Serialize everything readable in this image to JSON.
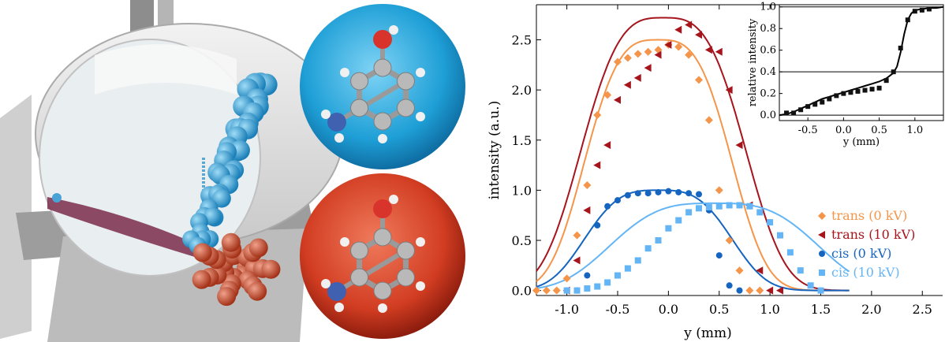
{
  "colors": {
    "trans_0kV": "#f5954a",
    "trans_10kV": "#a6141c",
    "cis_0kV": "#1565c0",
    "cis_10kV": "#64b5f6",
    "molecule_blue": "#2e93c9",
    "molecule_red": "#c8412c"
  },
  "illustration": {
    "description_icons": [
      "molecular-beam-deflector",
      "aminophenol-molecule-icon"
    ]
  },
  "chart_data": [
    {
      "type": "scatter",
      "xlabel": "y (mm)",
      "ylabel": "intensity (a.u.)",
      "xlim": [
        -1.3,
        2.7
      ],
      "ylim": [
        -0.05,
        2.85
      ],
      "xticks": [
        "-1.0",
        "-0.5",
        "0.0",
        "0.5",
        "1.0",
        "1.5",
        "2.0",
        "2.5"
      ],
      "xtick_values": [
        -1.0,
        -0.5,
        0.0,
        0.5,
        1.0,
        1.5,
        2.0,
        2.5
      ],
      "yticks": [
        "0.0",
        "0.5",
        "1.0",
        "1.5",
        "2.0",
        "2.5"
      ],
      "ytick_values": [
        0.0,
        0.5,
        1.0,
        1.5,
        2.0,
        2.5
      ],
      "legend_position": "right",
      "series": [
        {
          "name": "trans (0 kV)",
          "color": "#f5954a",
          "marker": "diamond",
          "x": [
            -1.3,
            -1.2,
            -1.1,
            -1.0,
            -0.9,
            -0.8,
            -0.7,
            -0.6,
            -0.5,
            -0.4,
            -0.3,
            -0.2,
            -0.1,
            0.0,
            0.1,
            0.2,
            0.3,
            0.4,
            0.5,
            0.6,
            0.7,
            0.8,
            0.9
          ],
          "y": [
            0.0,
            0.0,
            0.0,
            0.12,
            0.55,
            1.05,
            1.75,
            1.95,
            2.28,
            2.32,
            2.36,
            2.38,
            2.4,
            2.45,
            2.43,
            2.35,
            2.1,
            1.7,
            1.0,
            0.5,
            0.2,
            0.0,
            0.0
          ]
        },
        {
          "name": "trans (10 kV)",
          "color": "#a6141c",
          "marker": "triangle-left",
          "x": [
            -1.0,
            -0.9,
            -0.8,
            -0.7,
            -0.6,
            -0.5,
            -0.4,
            -0.3,
            -0.2,
            -0.1,
            0.0,
            0.1,
            0.2,
            0.3,
            0.4,
            0.5,
            0.6,
            0.7,
            0.8,
            0.9,
            1.0,
            1.1
          ],
          "y": [
            0.0,
            0.3,
            0.8,
            1.25,
            1.45,
            1.9,
            2.05,
            2.12,
            2.22,
            2.35,
            2.45,
            2.6,
            2.65,
            2.55,
            2.4,
            2.38,
            2.0,
            1.45,
            0.85,
            0.2,
            0.0,
            0.0
          ]
        },
        {
          "name": "cis (0 kV)",
          "color": "#1565c0",
          "marker": "circle",
          "x": [
            -1.0,
            -0.9,
            -0.8,
            -0.7,
            -0.6,
            -0.5,
            -0.4,
            -0.3,
            -0.2,
            -0.1,
            0.0,
            0.1,
            0.2,
            0.3,
            0.4,
            0.5,
            0.6,
            0.7
          ],
          "y": [
            0.0,
            0.0,
            0.15,
            0.65,
            0.84,
            0.9,
            0.95,
            0.97,
            0.97,
            0.98,
            0.99,
            0.98,
            0.97,
            0.96,
            0.8,
            0.35,
            0.05,
            0.0
          ]
        },
        {
          "name": "cis (10 kV)",
          "color": "#64b5f6",
          "marker": "square",
          "x": [
            -1.0,
            -0.9,
            -0.8,
            -0.7,
            -0.6,
            -0.5,
            -0.4,
            -0.3,
            -0.2,
            -0.1,
            0.0,
            0.1,
            0.2,
            0.3,
            0.4,
            0.5,
            0.6,
            0.7,
            0.8,
            0.9,
            1.0,
            1.1,
            1.2,
            1.3,
            1.4,
            1.5
          ],
          "y": [
            0.0,
            0.0,
            0.02,
            0.04,
            0.08,
            0.15,
            0.22,
            0.3,
            0.42,
            0.5,
            0.62,
            0.7,
            0.78,
            0.82,
            0.83,
            0.84,
            0.85,
            0.85,
            0.84,
            0.78,
            0.68,
            0.55,
            0.38,
            0.2,
            0.05,
            0.0
          ]
        }
      ],
      "fits": [
        {
          "series": "trans (0 kV)",
          "color": "#f5954a",
          "center": -0.1,
          "halfwidth": 0.85,
          "amplitude": 2.5
        },
        {
          "series": "trans (10 kV)",
          "color": "#a6141c",
          "center": -0.05,
          "halfwidth": 0.95,
          "amplitude": 2.72
        },
        {
          "series": "cis (0 kV)",
          "color": "#1565c0",
          "center": -0.1,
          "halfwidth": 0.85,
          "amplitude": 1.0
        },
        {
          "series": "cis (10 kV)",
          "color": "#64b5f6",
          "center": 0.45,
          "halfwidth": 1.2,
          "amplitude": 0.87
        }
      ]
    },
    {
      "type": "scatter",
      "xlabel": "y (mm)",
      "ylabel": "relative intensity",
      "xlim": [
        -0.9,
        1.4
      ],
      "ylim": [
        -0.05,
        1.02
      ],
      "xticks": [
        "-0.5",
        "0.0",
        "0.5",
        "1.0"
      ],
      "xtick_values": [
        -0.5,
        0.0,
        0.5,
        1.0
      ],
      "yticks": [
        "0.0",
        "0.2",
        "0.4",
        "0.6",
        "0.8",
        "1.0"
      ],
      "ytick_values": [
        0.0,
        0.2,
        0.4,
        0.6,
        0.8,
        1.0
      ],
      "hlines": [
        0.4,
        0.0,
        1.0
      ],
      "series": [
        {
          "name": "",
          "color": "#111111",
          "marker": "square",
          "x": [
            -0.8,
            -0.7,
            -0.6,
            -0.5,
            -0.4,
            -0.3,
            -0.2,
            -0.1,
            0.0,
            0.1,
            0.2,
            0.3,
            0.4,
            0.5,
            0.6,
            0.7,
            0.8,
            0.9,
            1.0,
            1.1,
            1.2
          ],
          "y": [
            0.02,
            0.02,
            0.05,
            0.08,
            0.1,
            0.12,
            0.15,
            0.18,
            0.2,
            0.21,
            0.22,
            0.23,
            0.24,
            0.25,
            0.32,
            0.4,
            0.62,
            0.88,
            0.96,
            0.97,
            0.98
          ]
        }
      ],
      "fit_line": {
        "x": [
          -0.9,
          -0.8,
          -0.7,
          -0.6,
          -0.5,
          -0.4,
          -0.3,
          -0.2,
          -0.1,
          0.0,
          0.1,
          0.2,
          0.3,
          0.4,
          0.5,
          0.6,
          0.7,
          0.75,
          0.8,
          0.85,
          0.9,
          0.95,
          1.0,
          1.1,
          1.2,
          1.3,
          1.4
        ],
        "y": [
          0.0,
          0.01,
          0.03,
          0.06,
          0.09,
          0.12,
          0.15,
          0.17,
          0.19,
          0.21,
          0.23,
          0.25,
          0.27,
          0.29,
          0.31,
          0.34,
          0.39,
          0.45,
          0.58,
          0.75,
          0.88,
          0.94,
          0.97,
          0.98,
          0.99,
          0.99,
          1.0
        ]
      }
    }
  ]
}
